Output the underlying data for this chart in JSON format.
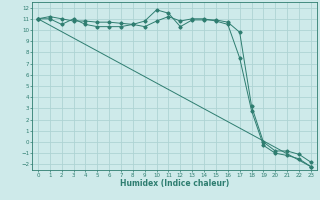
{
  "title": "",
  "xlabel": "Humidex (Indice chaleur)",
  "bg_color": "#ceeaea",
  "grid_color": "#aed4d4",
  "line_color": "#2e7d70",
  "xlim": [
    -0.5,
    23.5
  ],
  "ylim": [
    -2.5,
    12.5
  ],
  "xticks": [
    0,
    1,
    2,
    3,
    4,
    5,
    6,
    7,
    8,
    9,
    10,
    11,
    12,
    13,
    14,
    15,
    16,
    17,
    18,
    19,
    20,
    21,
    22,
    23
  ],
  "yticks": [
    -2,
    -1,
    0,
    1,
    2,
    3,
    4,
    5,
    6,
    7,
    8,
    9,
    10,
    11,
    12
  ],
  "line1_x": [
    0,
    1,
    2,
    3,
    4,
    5,
    6,
    7,
    8,
    9,
    10,
    11,
    12,
    13,
    14,
    15,
    16,
    17,
    18,
    19,
    20,
    21,
    22,
    23
  ],
  "line1_y": [
    11.0,
    11.2,
    11.0,
    10.8,
    10.8,
    10.7,
    10.7,
    10.6,
    10.5,
    10.8,
    11.8,
    11.5,
    10.3,
    10.9,
    10.9,
    10.9,
    10.7,
    9.8,
    3.2,
    0.0,
    -0.8,
    -0.8,
    -1.1,
    -1.8
  ],
  "line2_x": [
    0,
    1,
    2,
    3,
    4,
    5,
    6,
    7,
    8,
    9,
    10,
    11,
    12,
    13,
    14,
    15,
    16,
    17,
    18,
    19,
    20,
    21,
    22,
    23
  ],
  "line2_y": [
    11.0,
    11.0,
    10.5,
    11.0,
    10.5,
    10.3,
    10.3,
    10.3,
    10.5,
    10.3,
    10.8,
    11.2,
    10.8,
    11.0,
    11.0,
    10.8,
    10.5,
    7.5,
    2.8,
    -0.3,
    -1.0,
    -1.2,
    -1.5,
    -2.2
  ],
  "line3_x": [
    0,
    23
  ],
  "line3_y": [
    11.0,
    -2.2
  ],
  "xlabel_fontsize": 5.5,
  "tick_fontsize": 4.0
}
